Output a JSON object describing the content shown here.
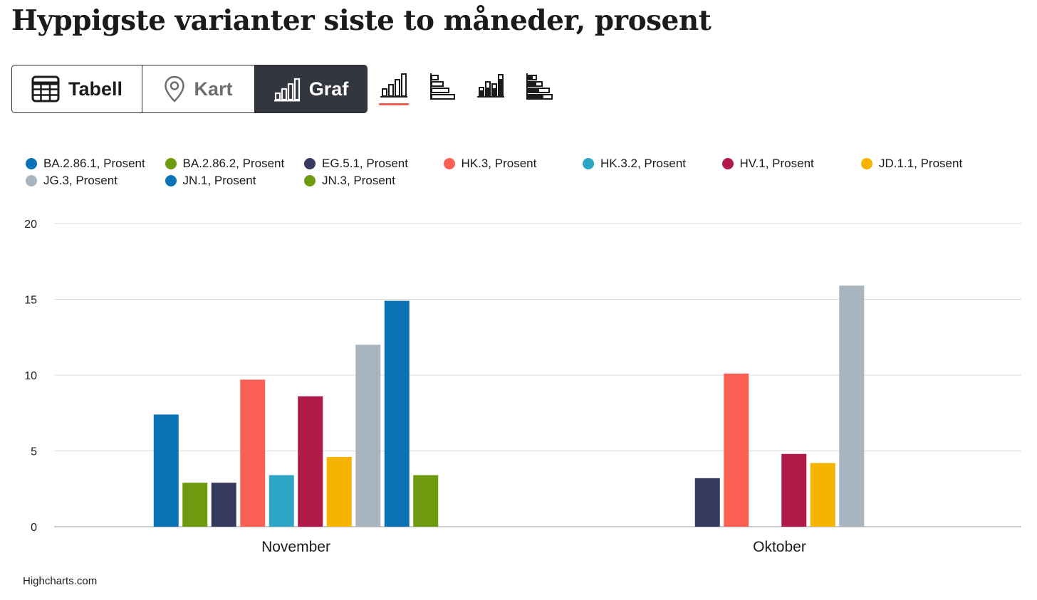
{
  "title": "Hyppigste varianter siste to måneder, prosent",
  "view_toggle": {
    "items": [
      {
        "label": "Tabell",
        "icon": "table-icon"
      },
      {
        "label": "Kart",
        "icon": "map-pin-icon"
      },
      {
        "label": "Graf",
        "icon": "bar-chart-icon",
        "active": true
      }
    ]
  },
  "chart_variants": [
    {
      "icon": "column-chart-icon",
      "active": true
    },
    {
      "icon": "horizontal-bar-chart-icon"
    },
    {
      "icon": "stacked-column-chart-icon"
    },
    {
      "icon": "stacked-bar-chart-icon"
    }
  ],
  "colors": {
    "accent_underline": "#ef5b4c",
    "active_segment": "#33353f",
    "grid": "#dcdcdc"
  },
  "chart_data": {
    "type": "bar",
    "categories": [
      "November",
      "Oktober"
    ],
    "ylim": [
      0,
      20
    ],
    "yticks": [
      0,
      5,
      10,
      15,
      20
    ],
    "grid": true,
    "legend_position": "top",
    "series": [
      {
        "name": "BA.2.86.1, Prosent",
        "color": "#0b73b5",
        "values": [
          7.4,
          null
        ]
      },
      {
        "name": "BA.2.86.2, Prosent",
        "color": "#6e9a0f",
        "values": [
          2.9,
          null
        ]
      },
      {
        "name": "EG.5.1, Prosent",
        "color": "#373a5e",
        "values": [
          2.9,
          3.2
        ]
      },
      {
        "name": "HK.3, Prosent",
        "color": "#fb6054",
        "values": [
          9.7,
          10.1
        ]
      },
      {
        "name": "HK.3.2, Prosent",
        "color": "#2ea5c5",
        "values": [
          3.4,
          null
        ]
      },
      {
        "name": "HV.1, Prosent",
        "color": "#b01a48",
        "values": [
          8.6,
          4.8
        ]
      },
      {
        "name": "JD.1.1, Prosent",
        "color": "#f6b400",
        "values": [
          4.6,
          4.2
        ]
      },
      {
        "name": "JG.3, Prosent",
        "color": "#a9b5be",
        "values": [
          12.0,
          15.9
        ]
      },
      {
        "name": "JN.1, Prosent",
        "color": "#0b73b5",
        "values": [
          14.9,
          null
        ]
      },
      {
        "name": "JN.3, Prosent",
        "color": "#6e9a0f",
        "values": [
          3.4,
          null
        ]
      }
    ]
  },
  "credit": "Highcharts.com"
}
